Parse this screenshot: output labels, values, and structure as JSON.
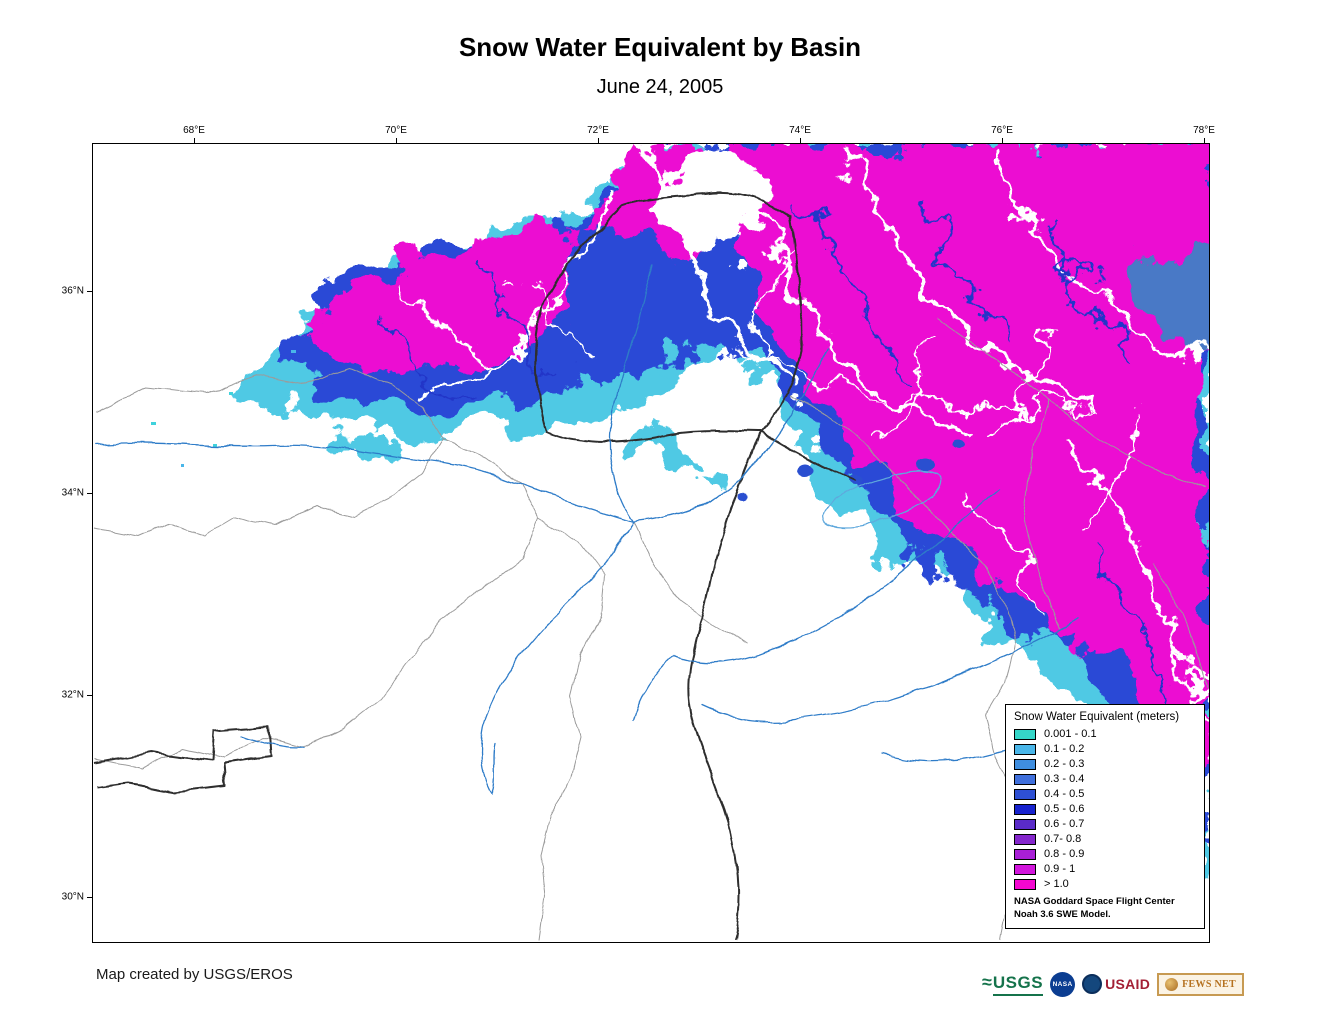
{
  "title": "Snow Water Equivalent by Basin",
  "subtitle": "June 24, 2005",
  "map": {
    "lon_labels": [
      "68°E",
      "70°E",
      "72°E",
      "74°E",
      "76°E",
      "78°E"
    ],
    "lat_labels": [
      "36°N",
      "34°N",
      "32°N",
      "30°N"
    ]
  },
  "legend": {
    "title": "Snow Water Equivalent (meters)",
    "entries": [
      {
        "label": "0.001 - 0.1",
        "color": "#35D6C8"
      },
      {
        "label": "0.1 - 0.2",
        "color": "#49B6E9"
      },
      {
        "label": "0.2 - 0.3",
        "color": "#3F8EE0"
      },
      {
        "label": "0.3 - 0.4",
        "color": "#3F6FDC"
      },
      {
        "label": "0.4 - 0.5",
        "color": "#2E50D4"
      },
      {
        "label": "0.5 - 0.6",
        "color": "#1722CE"
      },
      {
        "label": "0.6 - 0.7",
        "color": "#5A2BC8"
      },
      {
        "label": "0.7- 0.8",
        "color": "#8426CC"
      },
      {
        "label": "0.8 - 0.9",
        "color": "#A81FD6"
      },
      {
        "label": "0.9 - 1",
        "color": "#D215DC"
      },
      {
        "label": "> 1.0",
        "color": "#F407D0"
      }
    ],
    "source_line1": "NASA Goddard Space Flight Center",
    "source_line2": "Noah 3.6 SWE Model."
  },
  "credit": "Map created by USGS/EROS",
  "logos": {
    "usgs": "USGS",
    "nasa": "NASA",
    "usaid": "USAID",
    "fewsnet": "FEWS NET"
  }
}
